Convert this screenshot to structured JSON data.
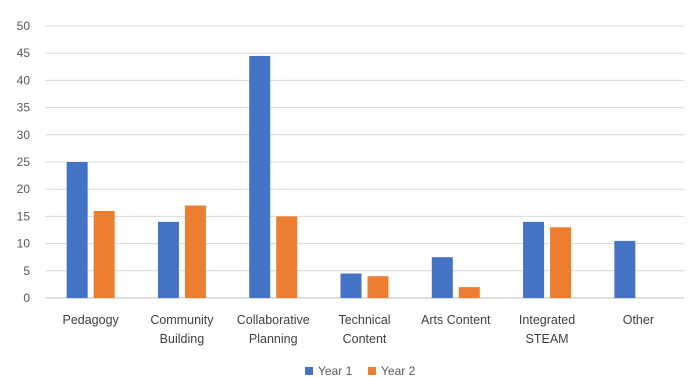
{
  "chart_data": {
    "type": "bar",
    "categories": [
      [
        "Pedagogy"
      ],
      [
        "Community",
        "Building"
      ],
      [
        "Collaborative",
        "Planning"
      ],
      [
        "Technical",
        "Content"
      ],
      [
        "Arts Content"
      ],
      [
        "Integrated",
        "STEAM"
      ],
      [
        "Other"
      ]
    ],
    "series": [
      {
        "name": "Year 1",
        "color": "#4472C4",
        "values": [
          25,
          14,
          44.5,
          4.5,
          7.5,
          14,
          10.5
        ]
      },
      {
        "name": "Year 2",
        "color": "#ED7D31",
        "values": [
          16,
          17,
          15,
          4,
          2,
          13,
          null
        ]
      }
    ],
    "ylim": [
      0,
      50
    ],
    "yticks": [
      0,
      5,
      10,
      15,
      20,
      25,
      30,
      35,
      40,
      45,
      50
    ],
    "grid": true,
    "legend": "bottom-center",
    "title": "",
    "xlabel": "",
    "ylabel": ""
  }
}
